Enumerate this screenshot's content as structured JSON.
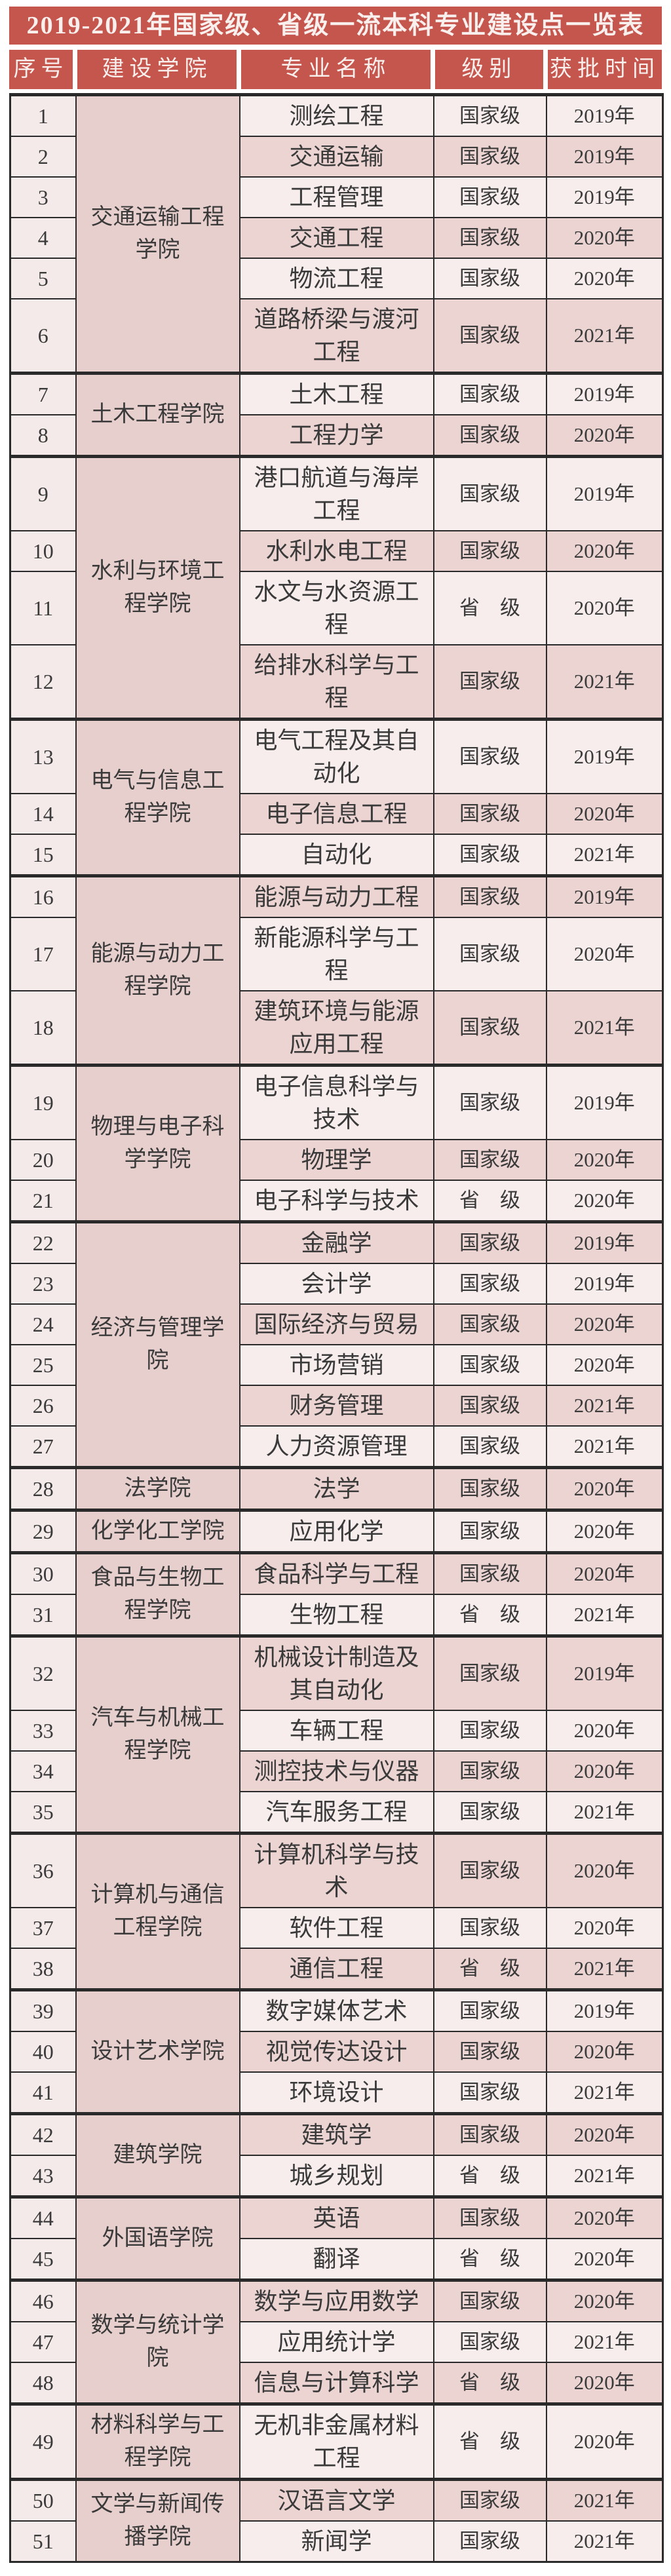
{
  "title": "2019-2021年国家级、省级一流本科专业建设点一览表",
  "columns": [
    "序号",
    "建设学院",
    "专业名称",
    "级别",
    "获批时间"
  ],
  "colors": {
    "header_red": "#c4564e",
    "header_text": "#f9efed",
    "border_dark": "#2a2a2a",
    "row_light": "#f6edec",
    "row_dark": "#ebd4d2",
    "college_bg": "#e7cfcd",
    "index_bg": "#f4eae9",
    "text_color": "#3a3a3a",
    "page_bg": "#ffffff"
  },
  "level_values": [
    "国家级",
    "省　级"
  ],
  "groups": [
    {
      "college": "交通运输工程学院",
      "majors": [
        {
          "no": 1,
          "major": "测绘工程",
          "level": "国家级",
          "year": "2019年"
        },
        {
          "no": 2,
          "major": "交通运输",
          "level": "国家级",
          "year": "2019年"
        },
        {
          "no": 3,
          "major": "工程管理",
          "level": "国家级",
          "year": "2019年"
        },
        {
          "no": 4,
          "major": "交通工程",
          "level": "国家级",
          "year": "2020年"
        },
        {
          "no": 5,
          "major": "物流工程",
          "level": "国家级",
          "year": "2020年"
        },
        {
          "no": 6,
          "major": "道路桥梁与渡河工程",
          "level": "国家级",
          "year": "2021年"
        }
      ]
    },
    {
      "college": "土木工程学院",
      "majors": [
        {
          "no": 7,
          "major": "土木工程",
          "level": "国家级",
          "year": "2019年"
        },
        {
          "no": 8,
          "major": "工程力学",
          "level": "国家级",
          "year": "2020年"
        }
      ]
    },
    {
      "college": "水利与环境工程学院",
      "majors": [
        {
          "no": 9,
          "major": "港口航道与海岸工程",
          "level": "国家级",
          "year": "2019年"
        },
        {
          "no": 10,
          "major": "水利水电工程",
          "level": "国家级",
          "year": "2020年"
        },
        {
          "no": 11,
          "major": "水文与水资源工程",
          "level": "省　级",
          "year": "2020年"
        },
        {
          "no": 12,
          "major": "给排水科学与工程",
          "level": "国家级",
          "year": "2021年"
        }
      ]
    },
    {
      "college": "电气与信息工程学院",
      "majors": [
        {
          "no": 13,
          "major": "电气工程及其自动化",
          "level": "国家级",
          "year": "2019年"
        },
        {
          "no": 14,
          "major": "电子信息工程",
          "level": "国家级",
          "year": "2020年"
        },
        {
          "no": 15,
          "major": "自动化",
          "level": "国家级",
          "year": "2021年"
        }
      ]
    },
    {
      "college": "能源与动力工程学院",
      "majors": [
        {
          "no": 16,
          "major": "能源与动力工程",
          "level": "国家级",
          "year": "2019年"
        },
        {
          "no": 17,
          "major": "新能源科学与工程",
          "level": "国家级",
          "year": "2020年"
        },
        {
          "no": 18,
          "major": "建筑环境与能源应用工程",
          "level": "国家级",
          "year": "2021年"
        }
      ]
    },
    {
      "college": "物理与电子科学学院",
      "majors": [
        {
          "no": 19,
          "major": "电子信息科学与技术",
          "level": "国家级",
          "year": "2019年"
        },
        {
          "no": 20,
          "major": "物理学",
          "level": "国家级",
          "year": "2020年"
        },
        {
          "no": 21,
          "major": "电子科学与技术",
          "level": "省　级",
          "year": "2020年"
        }
      ]
    },
    {
      "college": "经济与管理学院",
      "majors": [
        {
          "no": 22,
          "major": "金融学",
          "level": "国家级",
          "year": "2019年"
        },
        {
          "no": 23,
          "major": "会计学",
          "level": "国家级",
          "year": "2019年"
        },
        {
          "no": 24,
          "major": "国际经济与贸易",
          "level": "国家级",
          "year": "2020年"
        },
        {
          "no": 25,
          "major": "市场营销",
          "level": "国家级",
          "year": "2020年"
        },
        {
          "no": 26,
          "major": "财务管理",
          "level": "国家级",
          "year": "2021年"
        },
        {
          "no": 27,
          "major": "人力资源管理",
          "level": "国家级",
          "year": "2021年"
        }
      ]
    },
    {
      "college": "法学院",
      "majors": [
        {
          "no": 28,
          "major": "法学",
          "level": "国家级",
          "year": "2020年"
        }
      ]
    },
    {
      "college": "化学化工学院",
      "majors": [
        {
          "no": 29,
          "major": "应用化学",
          "level": "国家级",
          "year": "2020年"
        }
      ]
    },
    {
      "college": "食品与生物工程学院",
      "majors": [
        {
          "no": 30,
          "major": "食品科学与工程",
          "level": "国家级",
          "year": "2020年"
        },
        {
          "no": 31,
          "major": "生物工程",
          "level": "省　级",
          "year": "2021年"
        }
      ]
    },
    {
      "college": "汽车与机械工程学院",
      "majors": [
        {
          "no": 32,
          "major": "机械设计制造及其自动化",
          "level": "国家级",
          "year": "2019年"
        },
        {
          "no": 33,
          "major": "车辆工程",
          "level": "国家级",
          "year": "2020年"
        },
        {
          "no": 34,
          "major": "测控技术与仪器",
          "level": "国家级",
          "year": "2020年"
        },
        {
          "no": 35,
          "major": "汽车服务工程",
          "level": "国家级",
          "year": "2021年"
        }
      ]
    },
    {
      "college": "计算机与通信工程学院",
      "majors": [
        {
          "no": 36,
          "major": "计算机科学与技术",
          "level": "国家级",
          "year": "2020年"
        },
        {
          "no": 37,
          "major": "软件工程",
          "level": "国家级",
          "year": "2020年"
        },
        {
          "no": 38,
          "major": "通信工程",
          "level": "省　级",
          "year": "2021年"
        }
      ]
    },
    {
      "college": "设计艺术学院",
      "majors": [
        {
          "no": 39,
          "major": "数字媒体艺术",
          "level": "国家级",
          "year": "2019年"
        },
        {
          "no": 40,
          "major": "视觉传达设计",
          "level": "国家级",
          "year": "2020年"
        },
        {
          "no": 41,
          "major": "环境设计",
          "level": "国家级",
          "year": "2021年"
        }
      ]
    },
    {
      "college": "建筑学院",
      "majors": [
        {
          "no": 42,
          "major": "建筑学",
          "level": "国家级",
          "year": "2020年"
        },
        {
          "no": 43,
          "major": "城乡规划",
          "level": "省　级",
          "year": "2021年"
        }
      ]
    },
    {
      "college": "外国语学院",
      "majors": [
        {
          "no": 44,
          "major": "英语",
          "level": "国家级",
          "year": "2020年"
        },
        {
          "no": 45,
          "major": "翻译",
          "level": "省　级",
          "year": "2020年"
        }
      ]
    },
    {
      "college": "数学与统计学院",
      "majors": [
        {
          "no": 46,
          "major": "数学与应用数学",
          "level": "国家级",
          "year": "2020年"
        },
        {
          "no": 47,
          "major": "应用统计学",
          "level": "国家级",
          "year": "2021年"
        },
        {
          "no": 48,
          "major": "信息与计算科学",
          "level": "省　级",
          "year": "2020年"
        }
      ]
    },
    {
      "college": "材料科学与工程学院",
      "majors": [
        {
          "no": 49,
          "major": "无机非金属材料工程",
          "level": "省　级",
          "year": "2020年"
        }
      ]
    },
    {
      "college": "文学与新闻传播学院",
      "majors": [
        {
          "no": 50,
          "major": "汉语言文学",
          "level": "国家级",
          "year": "2021年"
        },
        {
          "no": 51,
          "major": "新闻学",
          "level": "国家级",
          "year": "2021年"
        }
      ]
    }
  ]
}
